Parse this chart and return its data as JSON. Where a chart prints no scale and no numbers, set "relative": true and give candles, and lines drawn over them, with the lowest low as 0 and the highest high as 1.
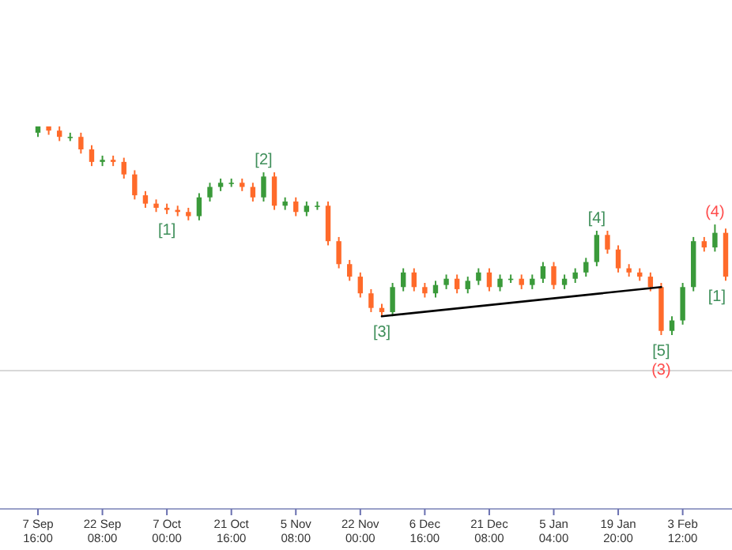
{
  "chart_data": {
    "type": "candlestick",
    "relative": true,
    "categories": [
      "7 Sep 16:00",
      null,
      null,
      null,
      null,
      null,
      "22 Sep 08:00",
      null,
      null,
      null,
      null,
      null,
      "7 Oct 00:00",
      null,
      null,
      null,
      null,
      null,
      "21 Oct 16:00",
      null,
      null,
      null,
      null,
      null,
      "5 Nov 08:00",
      null,
      null,
      null,
      null,
      null,
      "22 Nov 00:00",
      null,
      null,
      null,
      null,
      null,
      "6 Dec 16:00",
      null,
      null,
      null,
      null,
      null,
      "21 Dec 08:00",
      null,
      null,
      null,
      null,
      null,
      "5 Jan 04:00",
      null,
      null,
      null,
      null,
      null,
      "19 Jan 20:00",
      null,
      null,
      null,
      null,
      null,
      "3 Feb 12:00",
      null,
      null,
      null,
      null
    ],
    "ohlc": [
      [
        0.97,
        1.0,
        0.95,
        1.0
      ],
      [
        1.0,
        1.0,
        0.96,
        0.98
      ],
      [
        0.98,
        1.0,
        0.93,
        0.95
      ],
      [
        0.95,
        0.97,
        0.93,
        0.95
      ],
      [
        0.95,
        0.97,
        0.87,
        0.89
      ],
      [
        0.89,
        0.91,
        0.81,
        0.83
      ],
      [
        0.83,
        0.86,
        0.81,
        0.84
      ],
      [
        0.84,
        0.86,
        0.81,
        0.83
      ],
      [
        0.83,
        0.85,
        0.75,
        0.77
      ],
      [
        0.77,
        0.79,
        0.65,
        0.67
      ],
      [
        0.67,
        0.69,
        0.61,
        0.63
      ],
      [
        0.63,
        0.65,
        0.59,
        0.61
      ],
      [
        0.61,
        0.63,
        0.58,
        0.6
      ],
      [
        0.6,
        0.62,
        0.57,
        0.59
      ],
      [
        0.59,
        0.61,
        0.55,
        0.57
      ],
      [
        0.57,
        0.68,
        0.55,
        0.66
      ],
      [
        0.66,
        0.73,
        0.64,
        0.71
      ],
      [
        0.71,
        0.75,
        0.69,
        0.73
      ],
      [
        0.73,
        0.75,
        0.71,
        0.73
      ],
      [
        0.73,
        0.75,
        0.69,
        0.71
      ],
      [
        0.71,
        0.73,
        0.64,
        0.66
      ],
      [
        0.66,
        0.78,
        0.64,
        0.76
      ],
      [
        0.76,
        0.78,
        0.6,
        0.62
      ],
      [
        0.62,
        0.66,
        0.6,
        0.64
      ],
      [
        0.64,
        0.66,
        0.57,
        0.59
      ],
      [
        0.59,
        0.64,
        0.57,
        0.62
      ],
      [
        0.62,
        0.64,
        0.6,
        0.62
      ],
      [
        0.62,
        0.64,
        0.43,
        0.45
      ],
      [
        0.45,
        0.47,
        0.32,
        0.34
      ],
      [
        0.34,
        0.36,
        0.26,
        0.28
      ],
      [
        0.28,
        0.3,
        0.18,
        0.2
      ],
      [
        0.2,
        0.22,
        0.11,
        0.13
      ],
      [
        0.13,
        0.15,
        0.09,
        0.11
      ],
      [
        0.11,
        0.25,
        0.09,
        0.23
      ],
      [
        0.23,
        0.32,
        0.21,
        0.3
      ],
      [
        0.3,
        0.32,
        0.21,
        0.23
      ],
      [
        0.23,
        0.25,
        0.18,
        0.2
      ],
      [
        0.2,
        0.26,
        0.18,
        0.24
      ],
      [
        0.24,
        0.29,
        0.22,
        0.27
      ],
      [
        0.27,
        0.29,
        0.2,
        0.22
      ],
      [
        0.22,
        0.28,
        0.2,
        0.26
      ],
      [
        0.26,
        0.32,
        0.24,
        0.3
      ],
      [
        0.3,
        0.32,
        0.21,
        0.23
      ],
      [
        0.23,
        0.29,
        0.21,
        0.27
      ],
      [
        0.27,
        0.29,
        0.25,
        0.27
      ],
      [
        0.27,
        0.29,
        0.22,
        0.24
      ],
      [
        0.24,
        0.29,
        0.22,
        0.27
      ],
      [
        0.27,
        0.35,
        0.25,
        0.33
      ],
      [
        0.33,
        0.35,
        0.22,
        0.24
      ],
      [
        0.24,
        0.29,
        0.22,
        0.27
      ],
      [
        0.27,
        0.32,
        0.25,
        0.3
      ],
      [
        0.3,
        0.37,
        0.28,
        0.35
      ],
      [
        0.35,
        0.5,
        0.33,
        0.48
      ],
      [
        0.48,
        0.5,
        0.39,
        0.41
      ],
      [
        0.41,
        0.43,
        0.3,
        0.32
      ],
      [
        0.32,
        0.34,
        0.28,
        0.3
      ],
      [
        0.3,
        0.32,
        0.26,
        0.28
      ],
      [
        0.28,
        0.3,
        0.21,
        0.23
      ],
      [
        0.23,
        0.25,
        0.0,
        0.02
      ],
      [
        0.02,
        0.09,
        0.0,
        0.07
      ],
      [
        0.07,
        0.25,
        0.05,
        0.23
      ],
      [
        0.23,
        0.47,
        0.21,
        0.45
      ],
      [
        0.45,
        0.47,
        0.4,
        0.42
      ],
      [
        0.42,
        0.53,
        0.4,
        0.49
      ],
      [
        0.49,
        0.51,
        0.26,
        0.28
      ]
    ],
    "colors": [
      "#3a9a3a",
      "#ff6a2a",
      "#ff6a2a",
      "#3a9a3a",
      "#ff6a2a",
      "#ff6a2a",
      "#3a9a3a",
      "#ff6a2a",
      "#ff6a2a",
      "#ff6a2a",
      "#ff6a2a",
      "#ff6a2a",
      "#ff6a2a",
      "#ff6a2a",
      "#ff6a2a",
      "#3a9a3a",
      "#3a9a3a",
      "#3a9a3a",
      "#3a9a3a",
      "#ff6a2a",
      "#ff6a2a",
      "#3a9a3a",
      "#ff6a2a",
      "#3a9a3a",
      "#ff6a2a",
      "#3a9a3a",
      "#3a9a3a",
      "#ff6a2a",
      "#ff6a2a",
      "#ff6a2a",
      "#ff6a2a",
      "#ff6a2a",
      "#ff6a2a",
      "#3a9a3a",
      "#3a9a3a",
      "#ff6a2a",
      "#ff6a2a",
      "#3a9a3a",
      "#3a9a3a",
      "#ff6a2a",
      "#3a9a3a",
      "#3a9a3a",
      "#ff6a2a",
      "#3a9a3a",
      "#3a9a3a",
      "#ff6a2a",
      "#3a9a3a",
      "#3a9a3a",
      "#ff6a2a",
      "#3a9a3a",
      "#3a9a3a",
      "#3a9a3a",
      "#3a9a3a",
      "#ff6a2a",
      "#ff6a2a",
      "#ff6a2a",
      "#ff6a2a",
      "#ff6a2a",
      "#ff6a2a",
      "#3a9a3a",
      "#3a9a3a",
      "#3a9a3a",
      "#ff6a2a",
      "#3a9a3a",
      "#ff6a2a"
    ],
    "series": [
      {
        "type": "line",
        "color": "#000000",
        "values": [
          null,
          null,
          null,
          null,
          null,
          null,
          null,
          null,
          null,
          null,
          null,
          null,
          null,
          null,
          null,
          null,
          null,
          null,
          null,
          null,
          null,
          null,
          null,
          null,
          null,
          null,
          null,
          null,
          null,
          null,
          null,
          null,
          0.09,
          null,
          null,
          null,
          null,
          null,
          null,
          null,
          null,
          null,
          null,
          null,
          null,
          null,
          null,
          null,
          null,
          null,
          null,
          null,
          null,
          null,
          null,
          null,
          null,
          null,
          0.23,
          null,
          null,
          null,
          null,
          null,
          null
        ]
      }
    ],
    "ref_lines": [
      {
        "axis": "y",
        "value": -0.17,
        "color": "#d8d8d8"
      }
    ],
    "annotations": [
      "[1]",
      "[2]",
      "[3]",
      "[4]",
      "[5]",
      "(3)",
      "(4)",
      "[1]"
    ]
  }
}
